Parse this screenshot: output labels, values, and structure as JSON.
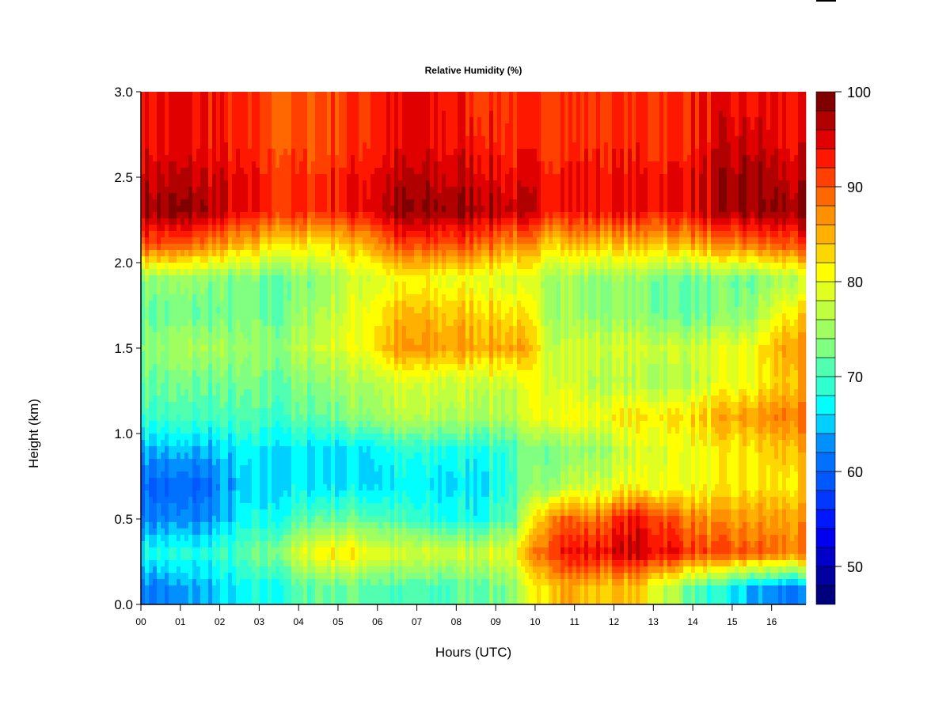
{
  "chart_data": {
    "type": "heatmap",
    "title": "Relative Humidity (%)",
    "xlabel": "Hours (UTC)",
    "ylabel": "Height (km)",
    "xlim": [
      0,
      16.87
    ],
    "ylim": [
      0,
      3.0
    ],
    "x_ticks": [
      "00",
      "01",
      "02",
      "03",
      "04",
      "05",
      "06",
      "07",
      "08",
      "09",
      "10",
      "11",
      "12",
      "13",
      "14",
      "15",
      "16"
    ],
    "y_ticks": [
      "0.0",
      "0.5",
      "1.0",
      "1.5",
      "2.0",
      "2.5",
      "3.0"
    ],
    "x_centers_hours": [
      0.5,
      1.5,
      2.5,
      3.5,
      4.5,
      5.5,
      6.5,
      7.5,
      8.5,
      9.5,
      10.5,
      11.5,
      12.5,
      13.5,
      14.5,
      15.5,
      16.4
    ],
    "y_centers_km": [
      0.1,
      0.3,
      0.5,
      0.7,
      0.9,
      1.1,
      1.3,
      1.5,
      1.7,
      1.9,
      2.1,
      2.3,
      2.5,
      2.7,
      2.9
    ],
    "values_by_height": [
      [
        62,
        64,
        66,
        68,
        72,
        72,
        70,
        70,
        72,
        74,
        86,
        84,
        84,
        76,
        68,
        64,
        62
      ],
      [
        68,
        68,
        70,
        74,
        82,
        82,
        78,
        78,
        78,
        80,
        94,
        94,
        96,
        94,
        90,
        90,
        88
      ],
      [
        62,
        62,
        66,
        68,
        72,
        72,
        70,
        68,
        68,
        72,
        90,
        88,
        94,
        90,
        86,
        86,
        86
      ],
      [
        60,
        60,
        64,
        66,
        66,
        66,
        66,
        66,
        66,
        70,
        76,
        78,
        80,
        80,
        80,
        82,
        82
      ],
      [
        64,
        64,
        66,
        66,
        66,
        66,
        68,
        68,
        68,
        70,
        74,
        74,
        78,
        80,
        80,
        82,
        84
      ],
      [
        70,
        70,
        70,
        70,
        72,
        74,
        76,
        76,
        76,
        76,
        82,
        80,
        82,
        82,
        84,
        86,
        88
      ],
      [
        72,
        72,
        72,
        72,
        74,
        76,
        78,
        78,
        78,
        78,
        80,
        76,
        76,
        76,
        78,
        80,
        84
      ],
      [
        74,
        76,
        74,
        74,
        78,
        80,
        86,
        86,
        86,
        86,
        78,
        78,
        78,
        78,
        78,
        80,
        86
      ],
      [
        72,
        72,
        72,
        72,
        76,
        80,
        84,
        84,
        84,
        82,
        76,
        74,
        74,
        72,
        72,
        74,
        82
      ],
      [
        74,
        74,
        72,
        72,
        74,
        78,
        80,
        80,
        80,
        78,
        76,
        74,
        74,
        72,
        72,
        72,
        76
      ],
      [
        90,
        88,
        84,
        82,
        82,
        84,
        90,
        90,
        90,
        86,
        84,
        84,
        84,
        84,
        86,
        88,
        90
      ],
      [
        98,
        98,
        94,
        92,
        92,
        94,
        98,
        98,
        98,
        96,
        94,
        94,
        94,
        94,
        96,
        98,
        98
      ],
      [
        96,
        96,
        94,
        92,
        92,
        94,
        96,
        96,
        96,
        94,
        94,
        94,
        94,
        94,
        96,
        98,
        96
      ],
      [
        94,
        94,
        92,
        90,
        90,
        92,
        94,
        94,
        94,
        92,
        92,
        92,
        92,
        92,
        94,
        96,
        94
      ],
      [
        94,
        94,
        92,
        90,
        90,
        92,
        94,
        94,
        92,
        92,
        92,
        92,
        92,
        92,
        94,
        94,
        94
      ]
    ],
    "colorbar": {
      "min": 46,
      "max": 100,
      "step": 2,
      "tick_labels": [
        "50",
        "60",
        "70",
        "80",
        "90",
        "100"
      ],
      "colors": [
        "#00007f",
        "#0000a0",
        "#0000c8",
        "#0000f0",
        "#0018ff",
        "#0038ff",
        "#0058ff",
        "#0070ff",
        "#0090ff",
        "#00d0ff",
        "#00ffff",
        "#30ffd0",
        "#50ffb0",
        "#80ff80",
        "#a0ff60",
        "#c0ff40",
        "#e0ff20",
        "#ffff00",
        "#ffd700",
        "#ffb000",
        "#ff9000",
        "#ff6800",
        "#ff4000",
        "#ff1800",
        "#e00000",
        "#b00000",
        "#800000"
      ]
    }
  }
}
